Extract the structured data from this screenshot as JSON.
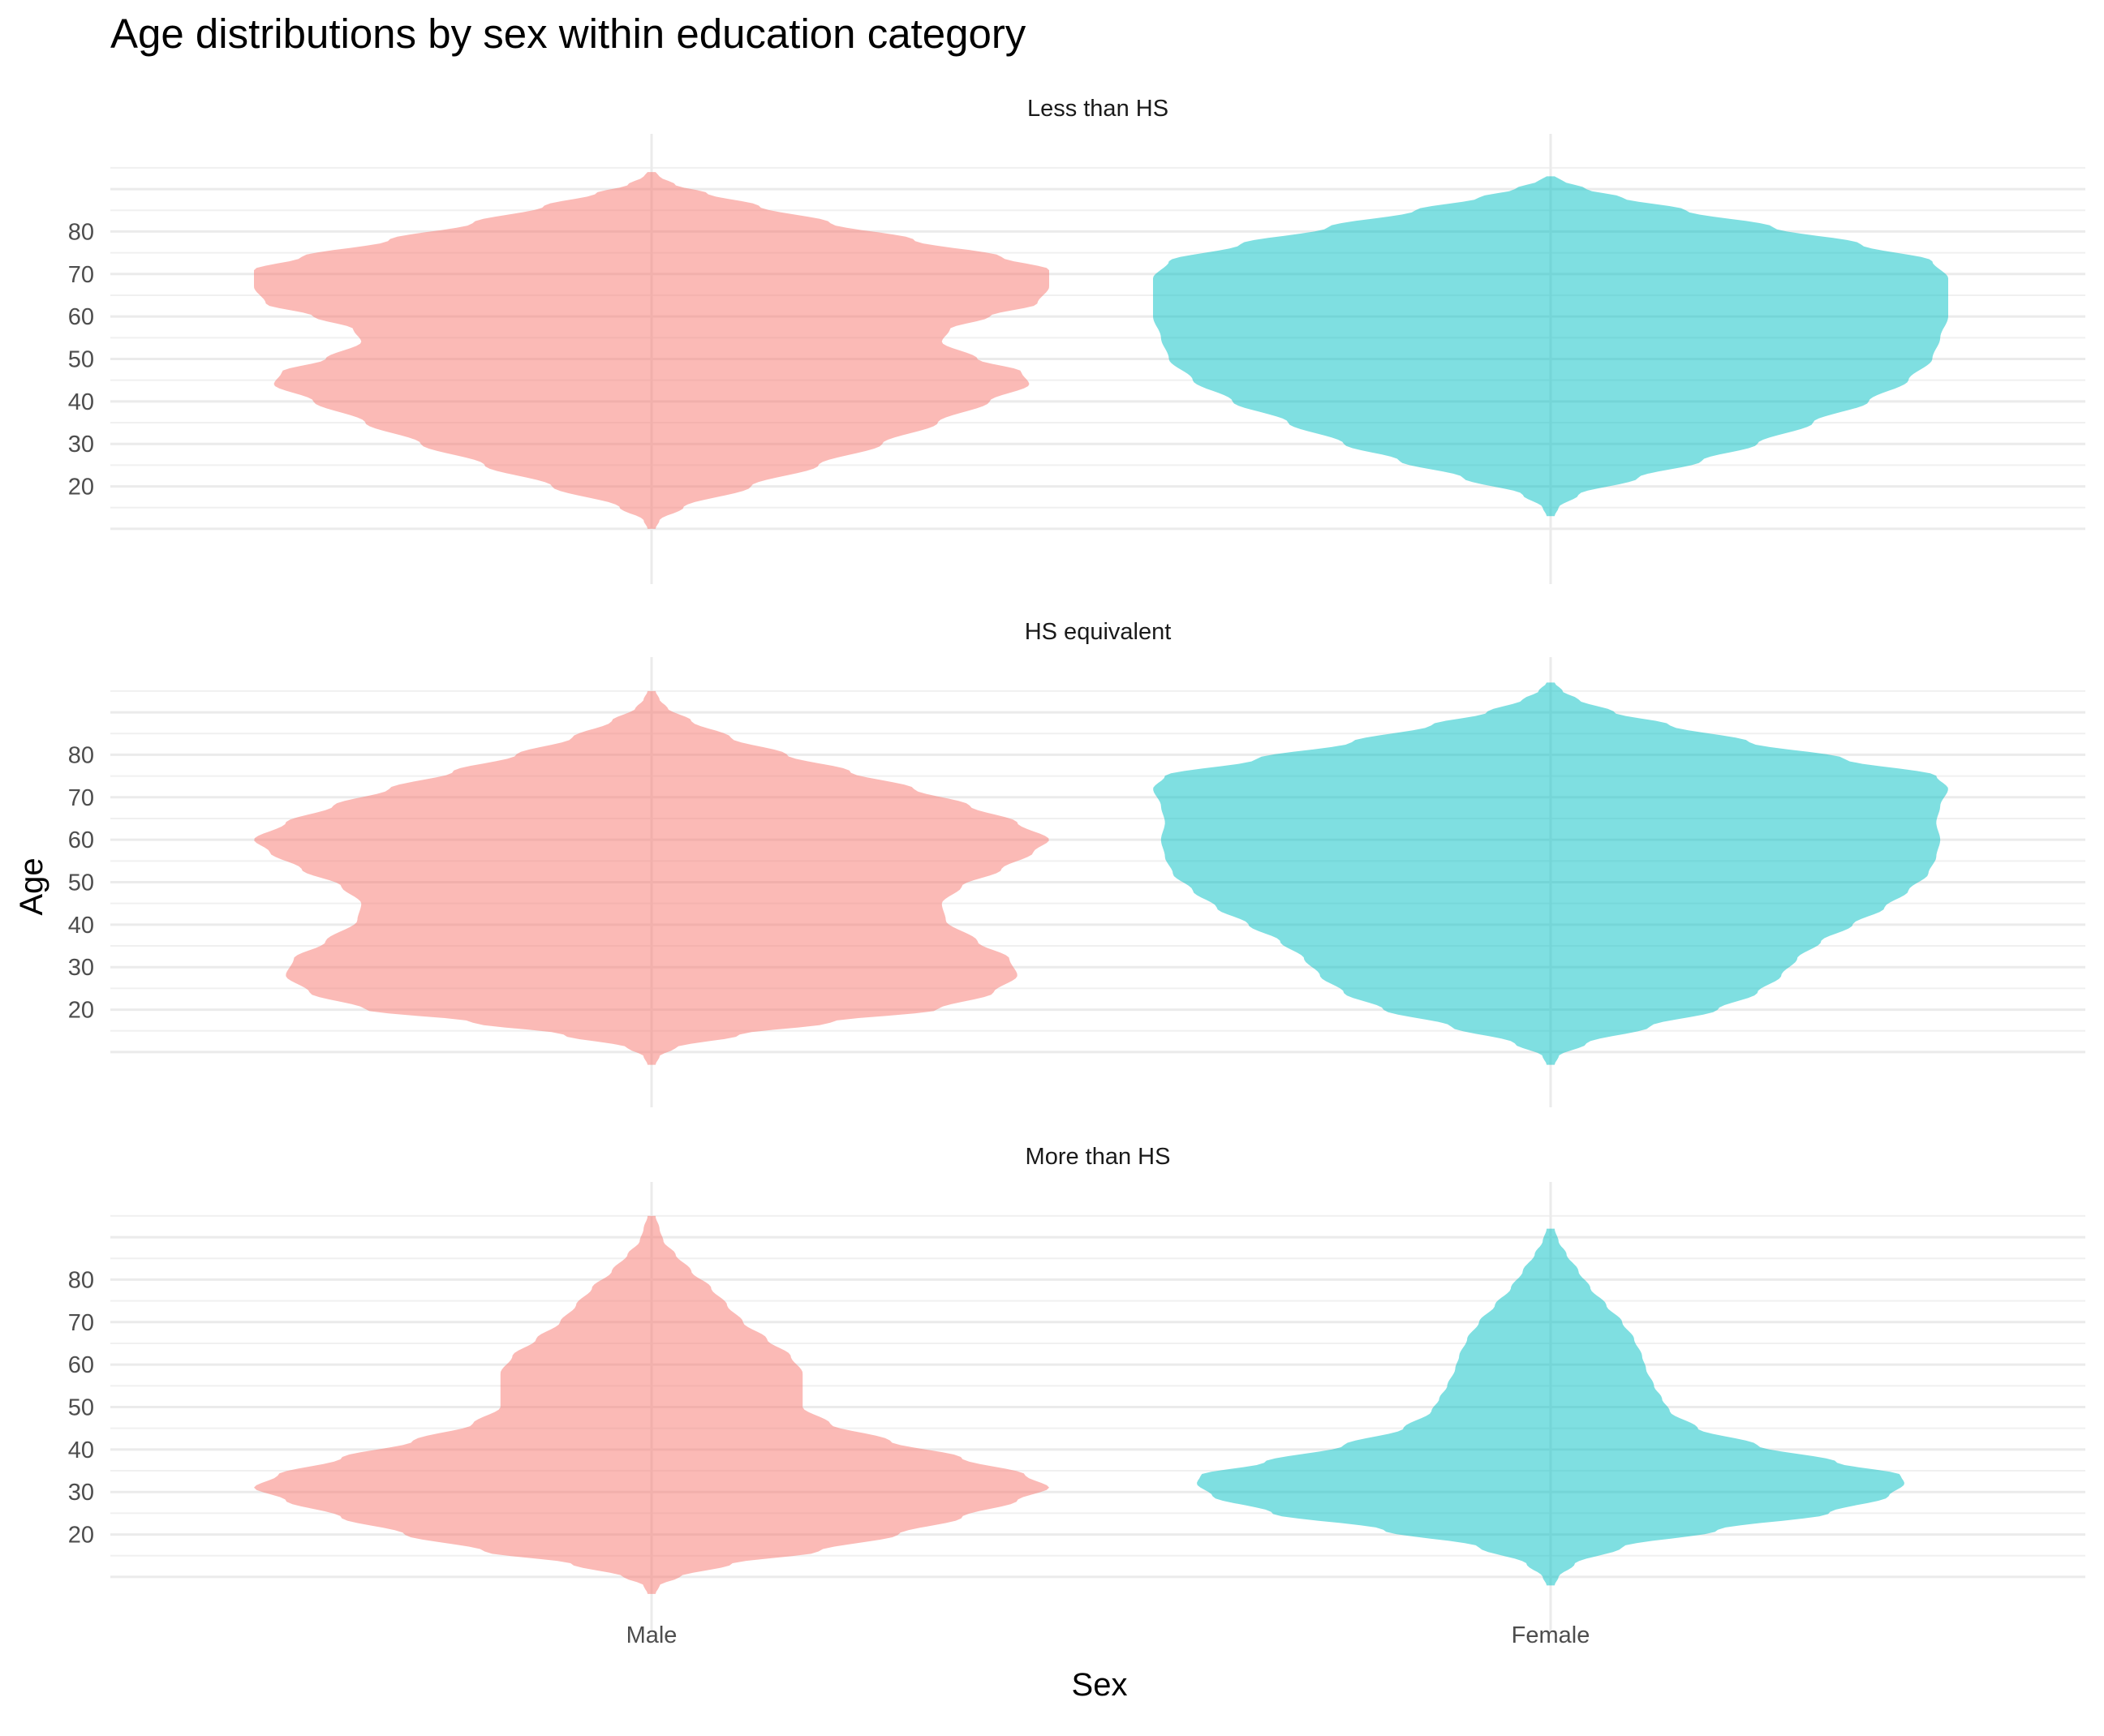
{
  "chart_data": {
    "type": "violin",
    "title": "Age distributions by sex within education category",
    "xlabel": "Sex",
    "ylabel": "Age",
    "categories": [
      "Male",
      "Female"
    ],
    "colors": {
      "Male": "#F8766D",
      "Female": "#00BFC4"
    },
    "yticks": [
      20,
      30,
      40,
      50,
      60,
      70,
      80
    ],
    "ylim": [
      -3,
      103
    ],
    "grid": true,
    "legend": "none",
    "panels": [
      {
        "label": "Less than HS",
        "violins": [
          {
            "name": "Male",
            "range": [
              10,
              94
            ],
            "profile": [
              [
                10,
                0.01
              ],
              [
                12,
                0.02
              ],
              [
                15,
                0.08
              ],
              [
                20,
                0.25
              ],
              [
                25,
                0.42
              ],
              [
                30,
                0.58
              ],
              [
                35,
                0.72
              ],
              [
                40,
                0.85
              ],
              [
                44,
                0.95
              ],
              [
                47,
                0.93
              ],
              [
                50,
                0.82
              ],
              [
                54,
                0.73
              ],
              [
                57,
                0.75
              ],
              [
                60,
                0.85
              ],
              [
                63,
                0.97
              ],
              [
                67,
                1.0
              ],
              [
                71,
                1.0
              ],
              [
                74,
                0.88
              ],
              [
                78,
                0.66
              ],
              [
                82,
                0.45
              ],
              [
                86,
                0.27
              ],
              [
                89,
                0.14
              ],
              [
                91,
                0.06
              ],
              [
                93,
                0.02
              ],
              [
                94,
                0.01
              ]
            ]
          },
          {
            "name": "Female",
            "range": [
              13,
              93
            ],
            "profile": [
              [
                13,
                0.01
              ],
              [
                15,
                0.02
              ],
              [
                18,
                0.07
              ],
              [
                22,
                0.22
              ],
              [
                26,
                0.38
              ],
              [
                30,
                0.52
              ],
              [
                35,
                0.66
              ],
              [
                40,
                0.8
              ],
              [
                45,
                0.9
              ],
              [
                50,
                0.96
              ],
              [
                55,
                0.98
              ],
              [
                60,
                1.0
              ],
              [
                65,
                1.0
              ],
              [
                69,
                1.0
              ],
              [
                73,
                0.96
              ],
              [
                77,
                0.78
              ],
              [
                81,
                0.56
              ],
              [
                85,
                0.34
              ],
              [
                88,
                0.18
              ],
              [
                90,
                0.09
              ],
              [
                92,
                0.03
              ],
              [
                93,
                0.01
              ]
            ]
          }
        ]
      },
      {
        "label": "HS equivalent",
        "violins": [
          {
            "name": "Male",
            "range": [
              7,
              95
            ],
            "profile": [
              [
                7,
                0.01
              ],
              [
                9,
                0.02
              ],
              [
                11,
                0.06
              ],
              [
                14,
                0.22
              ],
              [
                17,
                0.45
              ],
              [
                20,
                0.72
              ],
              [
                24,
                0.86
              ],
              [
                28,
                0.92
              ],
              [
                32,
                0.9
              ],
              [
                36,
                0.82
              ],
              [
                41,
                0.74
              ],
              [
                45,
                0.73
              ],
              [
                49,
                0.78
              ],
              [
                53,
                0.88
              ],
              [
                57,
                0.96
              ],
              [
                60,
                1.0
              ],
              [
                64,
                0.92
              ],
              [
                68,
                0.8
              ],
              [
                72,
                0.66
              ],
              [
                76,
                0.5
              ],
              [
                80,
                0.34
              ],
              [
                84,
                0.2
              ],
              [
                88,
                0.1
              ],
              [
                91,
                0.04
              ],
              [
                93,
                0.02
              ],
              [
                95,
                0.01
              ]
            ]
          },
          {
            "name": "Female",
            "range": [
              7,
              97
            ],
            "profile": [
              [
                7,
                0.01
              ],
              [
                9,
                0.02
              ],
              [
                12,
                0.09
              ],
              [
                16,
                0.25
              ],
              [
                20,
                0.42
              ],
              [
                24,
                0.52
              ],
              [
                28,
                0.58
              ],
              [
                32,
                0.62
              ],
              [
                36,
                0.68
              ],
              [
                40,
                0.76
              ],
              [
                44,
                0.84
              ],
              [
                48,
                0.9
              ],
              [
                52,
                0.95
              ],
              [
                56,
                0.97
              ],
              [
                60,
                0.98
              ],
              [
                64,
                0.97
              ],
              [
                68,
                0.98
              ],
              [
                72,
                1.0
              ],
              [
                75,
                0.97
              ],
              [
                79,
                0.74
              ],
              [
                83,
                0.5
              ],
              [
                87,
                0.3
              ],
              [
                90,
                0.16
              ],
              [
                93,
                0.07
              ],
              [
                95,
                0.03
              ],
              [
                97,
                0.01
              ]
            ]
          }
        ]
      },
      {
        "label": "More than HS",
        "violins": [
          {
            "name": "Male",
            "range": [
              6,
              95
            ],
            "profile": [
              [
                6,
                0.01
              ],
              [
                8,
                0.02
              ],
              [
                10,
                0.07
              ],
              [
                13,
                0.2
              ],
              [
                16,
                0.42
              ],
              [
                20,
                0.62
              ],
              [
                24,
                0.78
              ],
              [
                28,
                0.92
              ],
              [
                31,
                1.0
              ],
              [
                34,
                0.94
              ],
              [
                38,
                0.78
              ],
              [
                42,
                0.6
              ],
              [
                46,
                0.45
              ],
              [
                50,
                0.38
              ],
              [
                54,
                0.38
              ],
              [
                58,
                0.38
              ],
              [
                62,
                0.35
              ],
              [
                66,
                0.29
              ],
              [
                70,
                0.23
              ],
              [
                74,
                0.19
              ],
              [
                78,
                0.15
              ],
              [
                82,
                0.1
              ],
              [
                86,
                0.06
              ],
              [
                89,
                0.03
              ],
              [
                92,
                0.02
              ],
              [
                95,
                0.01
              ]
            ]
          },
          {
            "name": "Female",
            "range": [
              8,
              92
            ],
            "profile": [
              [
                8,
                0.01
              ],
              [
                10,
                0.02
              ],
              [
                13,
                0.06
              ],
              [
                17,
                0.18
              ],
              [
                21,
                0.42
              ],
              [
                25,
                0.7
              ],
              [
                29,
                0.85
              ],
              [
                32,
                0.89
              ],
              [
                34,
                0.88
              ],
              [
                37,
                0.72
              ],
              [
                41,
                0.52
              ],
              [
                45,
                0.37
              ],
              [
                49,
                0.3
              ],
              [
                52,
                0.28
              ],
              [
                55,
                0.26
              ],
              [
                59,
                0.24
              ],
              [
                62,
                0.23
              ],
              [
                66,
                0.21
              ],
              [
                70,
                0.18
              ],
              [
                74,
                0.14
              ],
              [
                78,
                0.1
              ],
              [
                82,
                0.07
              ],
              [
                86,
                0.04
              ],
              [
                89,
                0.02
              ],
              [
                92,
                0.01
              ]
            ]
          }
        ]
      }
    ]
  }
}
